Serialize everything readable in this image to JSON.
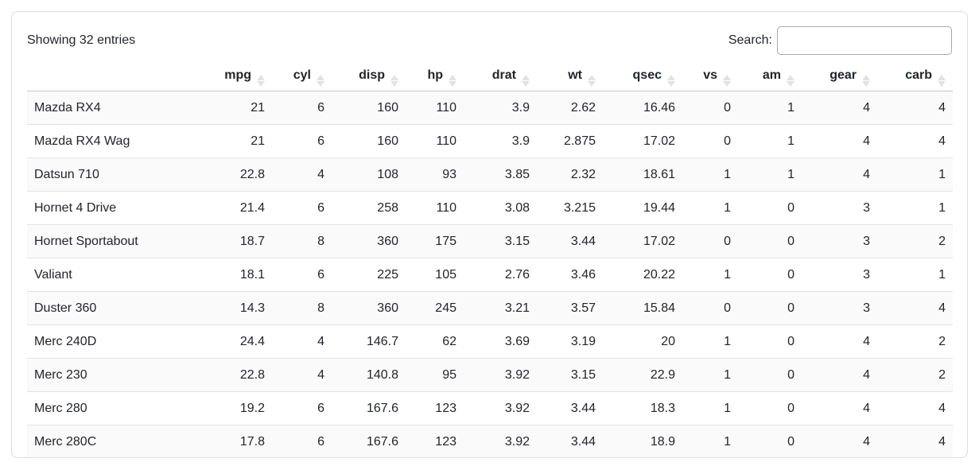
{
  "toolbar": {
    "showing_text": "Showing 32 entries",
    "search_label": "Search:",
    "search_value": ""
  },
  "table": {
    "columns": [
      {
        "id": "rowname",
        "label": "",
        "sortable": false
      },
      {
        "id": "mpg",
        "label": "mpg",
        "sortable": true
      },
      {
        "id": "cyl",
        "label": "cyl",
        "sortable": true
      },
      {
        "id": "disp",
        "label": "disp",
        "sortable": true
      },
      {
        "id": "hp",
        "label": "hp",
        "sortable": true
      },
      {
        "id": "drat",
        "label": "drat",
        "sortable": true
      },
      {
        "id": "wt",
        "label": "wt",
        "sortable": true
      },
      {
        "id": "qsec",
        "label": "qsec",
        "sortable": true
      },
      {
        "id": "vs",
        "label": "vs",
        "sortable": true
      },
      {
        "id": "am",
        "label": "am",
        "sortable": true
      },
      {
        "id": "gear",
        "label": "gear",
        "sortable": true
      },
      {
        "id": "carb",
        "label": "carb",
        "sortable": true
      }
    ],
    "rows": [
      {
        "name": "Mazda RX4",
        "values": [
          "21",
          "6",
          "160",
          "110",
          "3.9",
          "2.62",
          "16.46",
          "0",
          "1",
          "4",
          "4"
        ]
      },
      {
        "name": "Mazda RX4 Wag",
        "values": [
          "21",
          "6",
          "160",
          "110",
          "3.9",
          "2.875",
          "17.02",
          "0",
          "1",
          "4",
          "4"
        ]
      },
      {
        "name": "Datsun 710",
        "values": [
          "22.8",
          "4",
          "108",
          "93",
          "3.85",
          "2.32",
          "18.61",
          "1",
          "1",
          "4",
          "1"
        ]
      },
      {
        "name": "Hornet 4 Drive",
        "values": [
          "21.4",
          "6",
          "258",
          "110",
          "3.08",
          "3.215",
          "19.44",
          "1",
          "0",
          "3",
          "1"
        ]
      },
      {
        "name": "Hornet Sportabout",
        "values": [
          "18.7",
          "8",
          "360",
          "175",
          "3.15",
          "3.44",
          "17.02",
          "0",
          "0",
          "3",
          "2"
        ]
      },
      {
        "name": "Valiant",
        "values": [
          "18.1",
          "6",
          "225",
          "105",
          "2.76",
          "3.46",
          "20.22",
          "1",
          "0",
          "3",
          "1"
        ]
      },
      {
        "name": "Duster 360",
        "values": [
          "14.3",
          "8",
          "360",
          "245",
          "3.21",
          "3.57",
          "15.84",
          "0",
          "0",
          "3",
          "4"
        ]
      },
      {
        "name": "Merc 240D",
        "values": [
          "24.4",
          "4",
          "146.7",
          "62",
          "3.69",
          "3.19",
          "20",
          "1",
          "0",
          "4",
          "2"
        ]
      },
      {
        "name": "Merc 230",
        "values": [
          "22.8",
          "4",
          "140.8",
          "95",
          "3.92",
          "3.15",
          "22.9",
          "1",
          "0",
          "4",
          "2"
        ]
      },
      {
        "name": "Merc 280",
        "values": [
          "19.2",
          "6",
          "167.6",
          "123",
          "3.92",
          "3.44",
          "18.3",
          "1",
          "0",
          "4",
          "4"
        ]
      },
      {
        "name": "Merc 280C",
        "values": [
          "17.8",
          "6",
          "167.6",
          "123",
          "3.92",
          "3.44",
          "18.9",
          "1",
          "0",
          "4",
          "4"
        ]
      }
    ]
  },
  "colors": {
    "text": "#212529",
    "card_border": "#dcdcdc",
    "header_border": "#c6c6c6",
    "row_border": "#e3e3e3",
    "stripe": "#fafafa",
    "sort_icon": "#e2e2e2",
    "input_border": "#a8a8a8"
  }
}
